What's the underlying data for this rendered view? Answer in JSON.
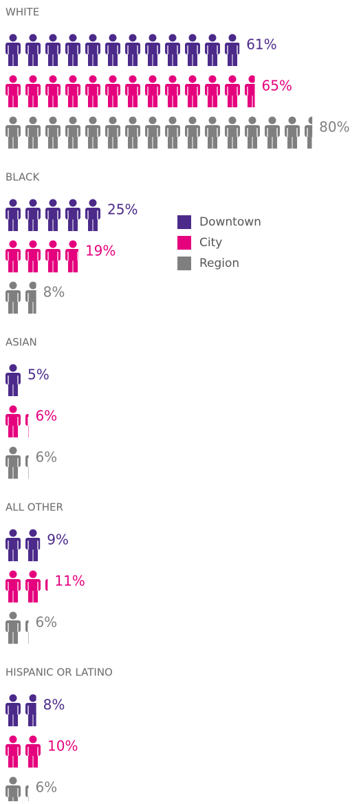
{
  "chart_data": {
    "type": "pictograph",
    "categories": [
      "WHITE",
      "BLACK",
      "ASIAN",
      "ALL OTHER",
      "HISPANIC OR LATINO"
    ],
    "series": [
      {
        "name": "Downtown",
        "color": "#4b2a8a",
        "values": [
          61,
          25,
          5,
          9,
          8
        ],
        "value_labels": [
          "61%",
          "25%",
          "5%",
          "9%",
          "8%"
        ]
      },
      {
        "name": "City",
        "color": "#e5007d",
        "values": [
          65,
          19,
          6,
          11,
          10
        ],
        "value_labels": [
          "65%",
          "19%",
          "6%",
          "11%",
          "10%"
        ]
      },
      {
        "name": "Region",
        "color": "#7f7f7f",
        "values": [
          80,
          8,
          6,
          6,
          6
        ],
        "value_labels": [
          "80%",
          "8%",
          "6%",
          "6%",
          "6%"
        ]
      }
    ]
  }
}
